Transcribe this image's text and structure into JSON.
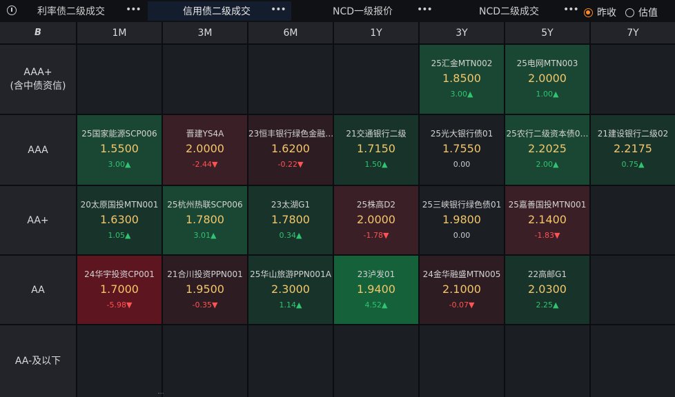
{
  "tabs": [
    {
      "label": "利率债二级成交",
      "active": false
    },
    {
      "label": "信用债二级成交",
      "active": true
    },
    {
      "label": "NCD一级报价",
      "active": false
    },
    {
      "label": "NCD二级成交",
      "active": false
    }
  ],
  "more_glyph": "•••",
  "radios": [
    {
      "label": "昨收",
      "checked": true
    },
    {
      "label": "估值",
      "checked": false
    }
  ],
  "corner_logo": "B",
  "columns": [
    "1M",
    "3M",
    "6M",
    "1Y",
    "3Y",
    "5Y",
    "7Y"
  ],
  "rows": [
    {
      "label": "AAA+",
      "sublabel": "(含中债资信)"
    },
    {
      "label": "AAA",
      "sublabel": ""
    },
    {
      "label": "AA+",
      "sublabel": ""
    },
    {
      "label": "AA",
      "sublabel": ""
    },
    {
      "label": "AA-及以下",
      "sublabel": ""
    }
  ],
  "cells": [
    [
      null,
      null,
      null,
      null,
      {
        "name": "25汇金MTN002",
        "price": "1.8500",
        "change": "3.00▲",
        "dir": "up",
        "tone": "g1"
      },
      {
        "name": "25电网MTN003",
        "price": "2.0000",
        "change": "1.00▲",
        "dir": "up",
        "tone": "g1"
      },
      null
    ],
    [
      {
        "name": "25国家能源SCP006",
        "price": "1.5500",
        "change": "3.00▲",
        "dir": "up",
        "tone": "g1"
      },
      {
        "name": "晋建YS4A",
        "price": "2.0000",
        "change": "-2.44▼",
        "dir": "down",
        "tone": "r1"
      },
      {
        "name": "23恒丰银行绿色金融…",
        "price": "1.6200",
        "change": "-0.22▼",
        "dir": "down",
        "tone": "r3"
      },
      {
        "name": "21交通银行二级",
        "price": "1.7150",
        "change": "1.50▲",
        "dir": "up",
        "tone": "g3"
      },
      {
        "name": "25光大银行债01",
        "price": "1.7550",
        "change": "0.00",
        "dir": "flat",
        "tone": "n"
      },
      {
        "name": "25农行二级资本债0…",
        "price": "2.2025",
        "change": "2.00▲",
        "dir": "up",
        "tone": "g1"
      },
      {
        "name": "21建设银行二级02",
        "price": "2.2175",
        "change": "0.75▲",
        "dir": "up",
        "tone": "g3"
      }
    ],
    [
      {
        "name": "20太原国投MTN001",
        "price": "1.6300",
        "change": "1.05▲",
        "dir": "up",
        "tone": "g3"
      },
      {
        "name": "25杭州热联SCP006",
        "price": "1.7800",
        "change": "3.01▲",
        "dir": "up",
        "tone": "g1"
      },
      {
        "name": "23太湖G1",
        "price": "1.7800",
        "change": "0.34▲",
        "dir": "up",
        "tone": "g3"
      },
      {
        "name": "25株高D2",
        "price": "2.0000",
        "change": "-1.78▼",
        "dir": "down",
        "tone": "r1"
      },
      {
        "name": "25三峡银行绿色债01",
        "price": "1.9800",
        "change": "0.00",
        "dir": "flat",
        "tone": "n"
      },
      {
        "name": "25嘉善国投MTN001",
        "price": "2.1400",
        "change": "-1.83▼",
        "dir": "down",
        "tone": "r1"
      },
      null
    ],
    [
      {
        "name": "24华宇投资CP001",
        "price": "1.7000",
        "change": "-5.98▼",
        "dir": "down",
        "tone": "r2"
      },
      {
        "name": "21合川投资PPN001",
        "price": "1.9500",
        "change": "-0.35▼",
        "dir": "down",
        "tone": "r3"
      },
      {
        "name": "25华山旅游PPN001A",
        "price": "2.3000",
        "change": "1.14▲",
        "dir": "up",
        "tone": "g3"
      },
      {
        "name": "23泸发01",
        "price": "1.9400",
        "change": "4.52▲",
        "dir": "up",
        "tone": "g2"
      },
      {
        "name": "24金华融盛MTN005",
        "price": "2.1000",
        "change": "-0.07▼",
        "dir": "down",
        "tone": "r3"
      },
      {
        "name": "22高邮G1",
        "price": "2.0300",
        "change": "2.25▲",
        "dir": "up",
        "tone": "g3"
      },
      null
    ],
    [
      null,
      null,
      null,
      null,
      null,
      null,
      null
    ]
  ]
}
